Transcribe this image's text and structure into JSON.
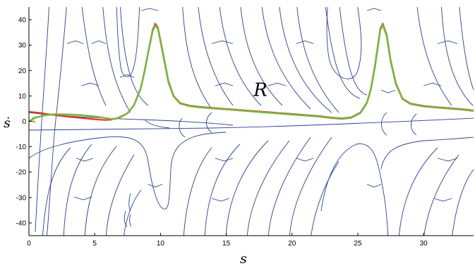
{
  "chart_data": {
    "type": "line",
    "title": "",
    "xlabel": "s",
    "ylabel": "ṡ",
    "xlim": [
      0,
      33.8
    ],
    "ylim": [
      -45,
      45
    ],
    "xticks": [
      0,
      5,
      10,
      15,
      20,
      25,
      30
    ],
    "yticks": [
      40,
      30,
      20,
      10,
      0,
      -10,
      -20,
      -30,
      -40
    ],
    "xtick_labels": [
      "0",
      "5",
      "10",
      "15",
      "20",
      "25",
      "30"
    ],
    "ytick_labels": [
      "40",
      "30",
      "20",
      "10",
      "0",
      "-10",
      "-20",
      "-30",
      "-40"
    ],
    "annotations": [
      {
        "text": "R",
        "x": 17.6,
        "y": 12.5
      }
    ],
    "grid": false,
    "colors": {
      "streamlines": "#2b3f8f",
      "red_curve": "#e03a28",
      "green_curve": "#7cb342"
    },
    "series": [
      {
        "x": [
          0,
          1,
          2,
          3,
          4,
          5,
          5.8,
          6.2,
          6.8,
          7.5,
          8.0,
          8.5,
          8.8,
          9.1,
          9.4,
          9.6,
          9.8,
          10.0,
          10.3,
          10.6,
          11.0,
          11.5,
          12.2,
          13,
          14,
          15,
          16,
          17,
          18,
          19,
          20,
          21,
          22,
          23,
          23.8,
          24.5,
          25.2,
          25.7,
          26.0,
          26.3,
          26.55,
          26.7,
          26.9,
          27.2,
          27.5,
          27.9,
          28.4,
          29,
          30,
          31,
          32,
          33,
          33.8
        ],
        "y": [
          3.8,
          3.2,
          2.4,
          1.8,
          1.3,
          0.8,
          0.5,
          0.6,
          1.4,
          3.2,
          6.5,
          13,
          20,
          28,
          36,
          38.5,
          37,
          32,
          24,
          16,
          10,
          7.2,
          6.2,
          5.7,
          5.3,
          4.9,
          4.5,
          4.1,
          3.7,
          3.3,
          2.9,
          2.5,
          2.1,
          1.5,
          1.2,
          1.6,
          3.5,
          7.5,
          13,
          22,
          31,
          36.5,
          38.5,
          34,
          24,
          15,
          9,
          7,
          6.1,
          5.6,
          5.2,
          4.8,
          4.3
        ]
      },
      {
        "x": [
          0.1,
          0.5,
          1.2,
          2,
          3,
          4,
          5,
          5.8,
          6.3,
          6.8,
          7.5,
          8.0,
          8.5,
          8.8,
          9.1,
          9.4,
          9.6,
          9.8,
          10.0,
          10.3,
          10.6,
          11.0,
          11.5,
          12.2,
          13,
          14,
          15,
          16,
          17,
          18,
          19,
          20,
          21,
          22,
          23,
          23.8,
          24.5,
          25.2,
          25.7,
          26.0,
          26.3,
          26.55,
          26.7,
          26.9,
          27.2,
          27.5,
          27.9,
          28.4,
          29,
          30,
          31,
          32,
          33,
          33.8
        ],
        "y": [
          0.3,
          1.5,
          2.4,
          2.8,
          2.7,
          2.4,
          1.9,
          1.3,
          0.9,
          1.2,
          3.2,
          6.5,
          13,
          20,
          28,
          35.5,
          37.8,
          36.5,
          31.5,
          23.5,
          15.5,
          9.8,
          7.0,
          6.0,
          5.5,
          5.1,
          4.7,
          4.3,
          3.9,
          3.5,
          3.1,
          2.7,
          2.3,
          1.9,
          1.3,
          1.0,
          1.4,
          3.3,
          7.3,
          12.8,
          21.5,
          30.5,
          36,
          38,
          33.5,
          23.5,
          14.6,
          8.8,
          6.8,
          5.9,
          5.4,
          5.0,
          4.6,
          4.1
        ]
      }
    ]
  }
}
